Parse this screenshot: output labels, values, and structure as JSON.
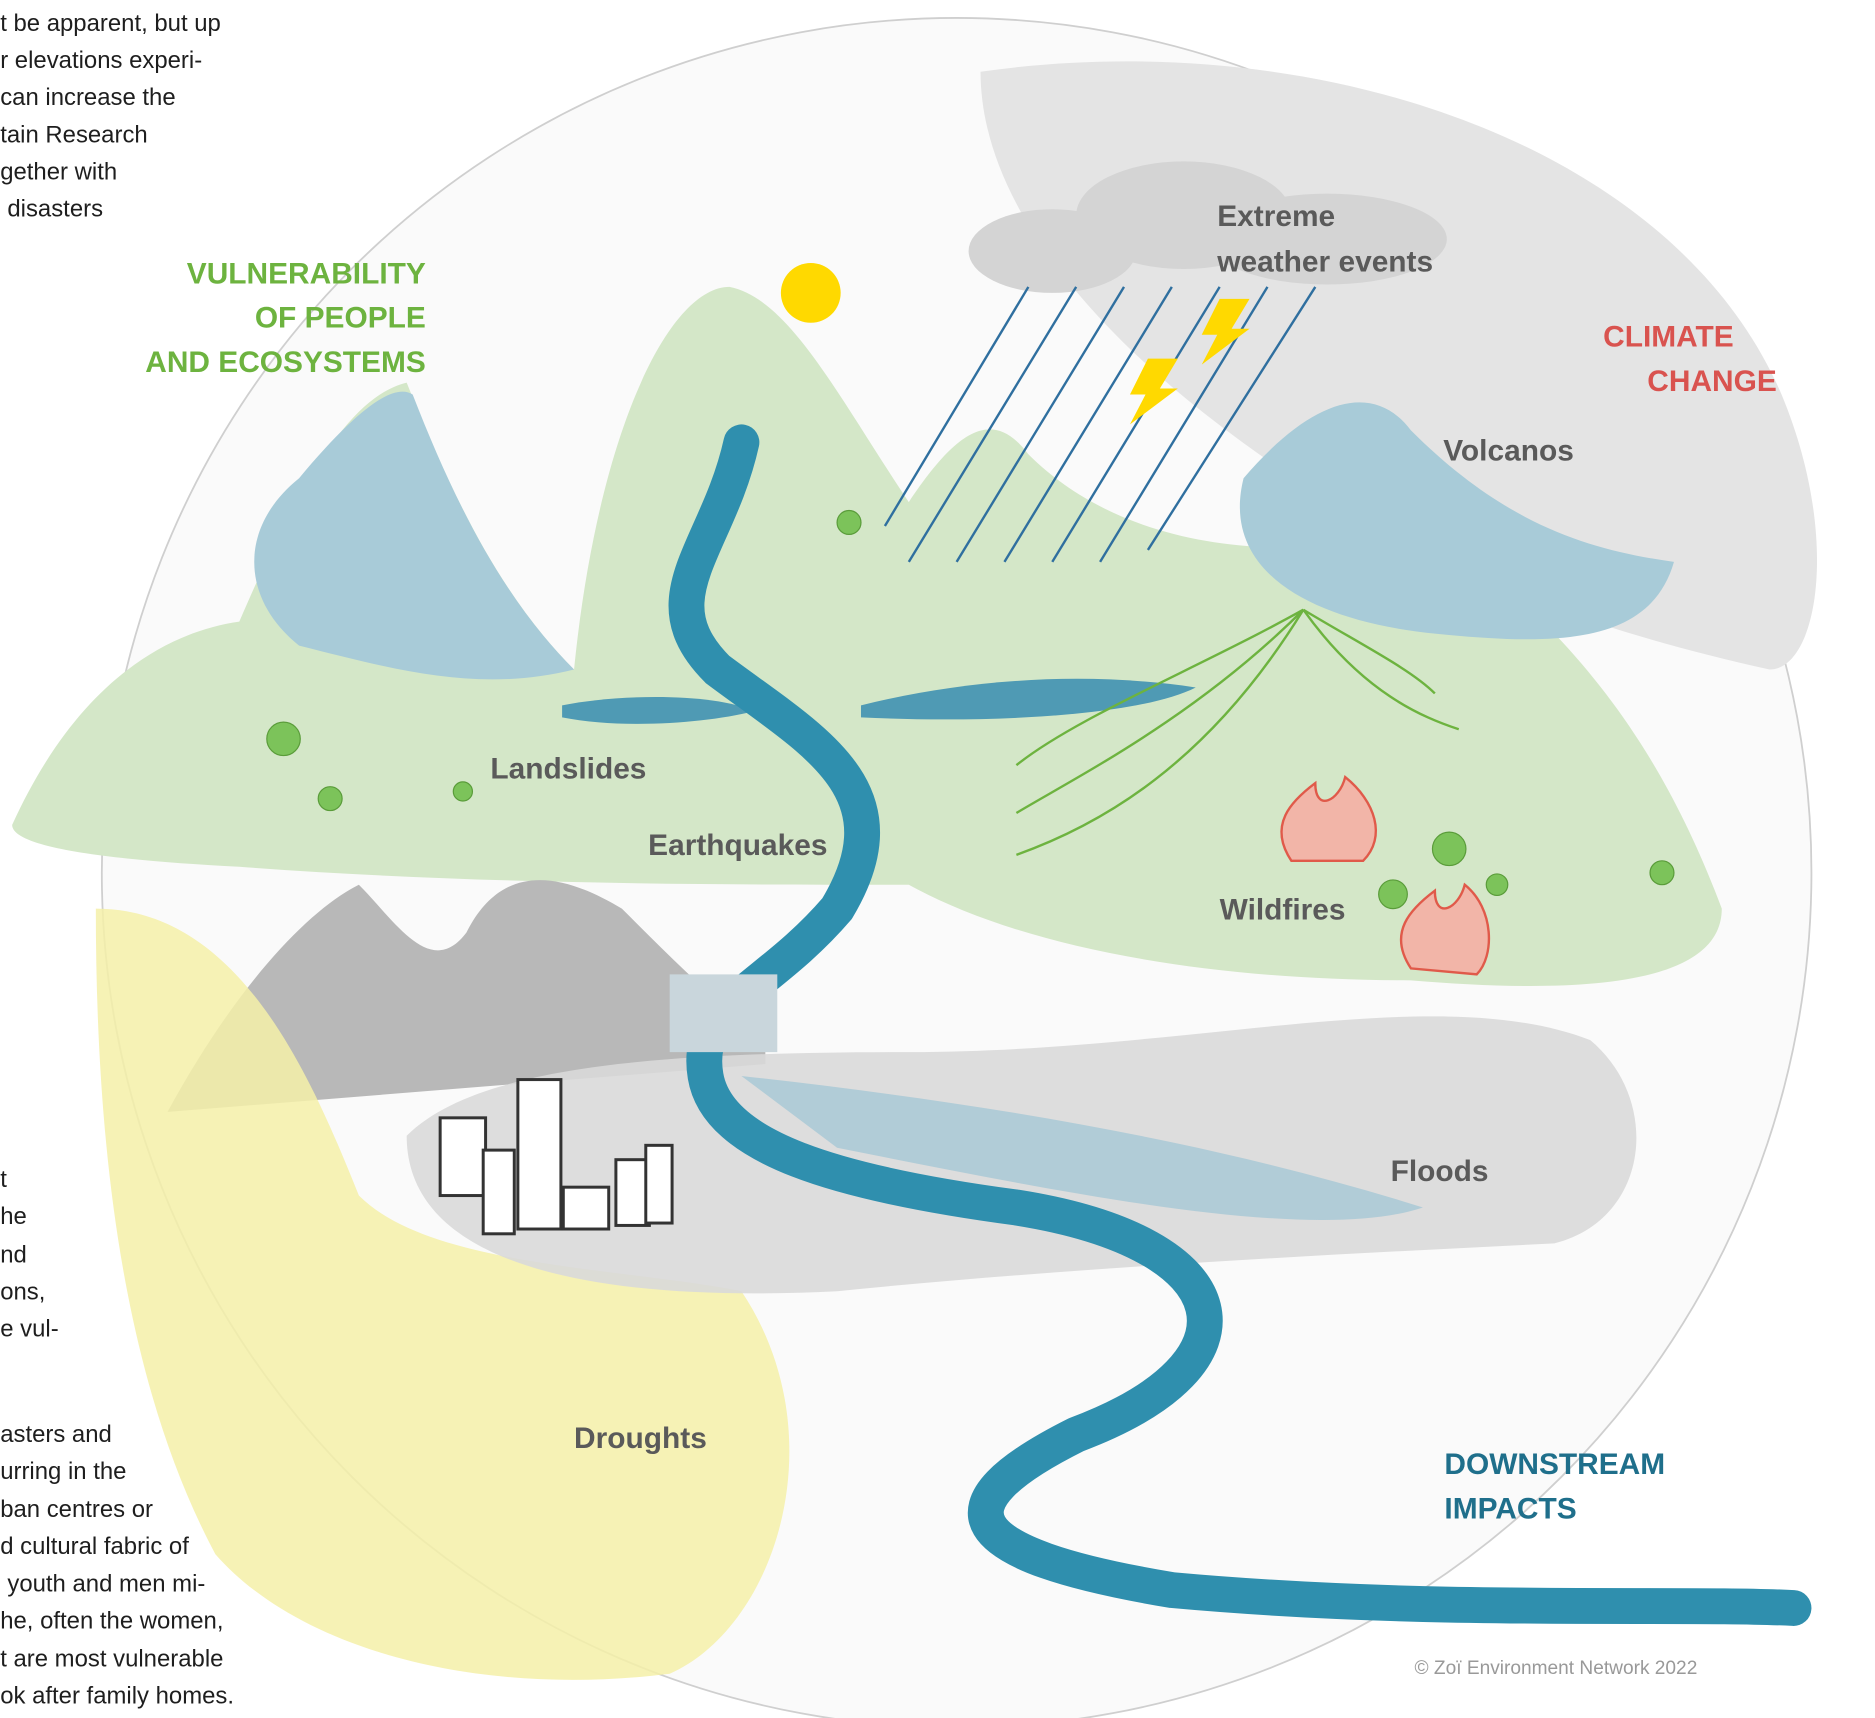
{
  "text_fragments": {
    "top": [
      "t be apparent, but up",
      "r elevations experi-",
      "can increase the",
      "tain Research",
      "gether with",
      "disasters"
    ],
    "middle": [
      "t",
      "he",
      "nd",
      "ons,",
      "e vul-"
    ],
    "bottom": [
      "asters and",
      "urring in the",
      "ban centres or",
      "d cultural fabric of",
      "youth and men mi-",
      "he, often the women,",
      "t are most vulnerable",
      "ok after family homes."
    ]
  },
  "headings": {
    "vulnerability": [
      "VULNERABILITY",
      "OF PEOPLE",
      "AND ECOSYSTEMS"
    ],
    "climate_change": [
      "CLIMATE",
      "CHANGE"
    ],
    "downstream_impacts": [
      "DOWNSTREAM",
      "IMPACTS"
    ]
  },
  "hazards": {
    "extreme_weather": [
      "Extreme",
      "weather events"
    ],
    "volcanos": "Volcanos",
    "landslides": "Landslides",
    "earthquakes": "Earthquakes",
    "wildfires": "Wildfires",
    "floods": "Floods",
    "droughts": "Droughts"
  },
  "credit": "© Zoï Environment Network 2022"
}
